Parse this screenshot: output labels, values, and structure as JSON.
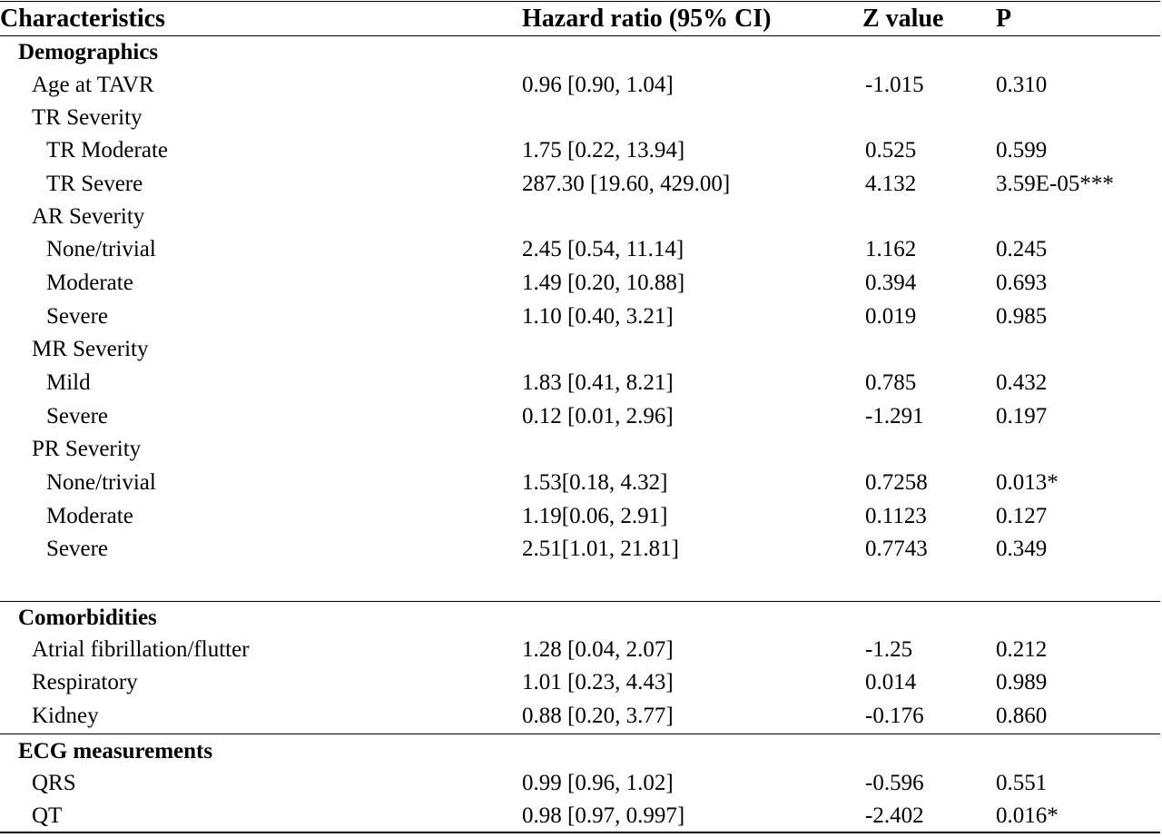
{
  "columns": {
    "characteristics": "Characteristics",
    "hazard_ratio": "Hazard ratio (95% CI)",
    "z_value": "Z value",
    "p": "P"
  },
  "sections": [
    {
      "title": "Demographics",
      "rows": [
        {
          "label": "Age at TAVR",
          "hr": "0.96 [0.90, 1.04]",
          "z": "-1.015",
          "p": "0.310"
        },
        {
          "label": "TR Severity",
          "hr": "",
          "z": "",
          "p": ""
        },
        {
          "label": "TR Moderate",
          "hr": "1.75 [0.22, 13.94]",
          "z": "0.525",
          "p": "0.599"
        },
        {
          "label": "TR Severe",
          "hr": "287.30 [19.60, 429.00]",
          "z": "4.132",
          "p": "3.59E-05***"
        },
        {
          "label": "AR Severity",
          "hr": "",
          "z": "",
          "p": ""
        },
        {
          "label": "None/trivial",
          "hr": "2.45 [0.54, 11.14]",
          "z": "1.162",
          "p": "0.245"
        },
        {
          "label": "Moderate",
          "hr": "1.49 [0.20, 10.88]",
          "z": "0.394",
          "p": "0.693"
        },
        {
          "label": "Severe",
          "hr": "1.10 [0.40, 3.21]",
          "z": "0.019",
          "p": "0.985"
        },
        {
          "label": "MR Severity",
          "hr": "",
          "z": "",
          "p": ""
        },
        {
          "label": "Mild",
          "hr": "1.83 [0.41, 8.21]",
          "z": "0.785",
          "p": "0.432"
        },
        {
          "label": "Severe",
          "hr": "0.12 [0.01, 2.96]",
          "z": "-1.291",
          "p": "0.197"
        },
        {
          "label": "PR Severity",
          "hr": "",
          "z": "",
          "p": ""
        },
        {
          "label": "None/trivial",
          "hr": "1.53[0.18, 4.32]",
          "z": "0.7258",
          "p": "0.013*"
        },
        {
          "label": "Moderate",
          "hr": "1.19[0.06, 2.91]",
          "z": "0.1123",
          "p": "0.127"
        },
        {
          "label": "Severe",
          "hr": "2.51[1.01, 21.81]",
          "z": "0.7743",
          "p": "0.349"
        }
      ]
    },
    {
      "title": "Comorbidities",
      "rows": [
        {
          "label": "Atrial fibrillation/flutter",
          "hr": "1.28 [0.04, 2.07]",
          "z": "-1.25",
          "p": "0.212"
        },
        {
          "label": "Respiratory",
          "hr": "1.01 [0.23, 4.43]",
          "z": "0.014",
          "p": "0.989"
        },
        {
          "label": "Kidney",
          "hr": "0.88 [0.20, 3.77]",
          "z": "-0.176",
          "p": "0.860"
        }
      ]
    },
    {
      "title": "ECG measurements",
      "rows": [
        {
          "label": "QRS",
          "hr": "0.99 [0.96, 1.02]",
          "z": "-0.596",
          "p": "0.551"
        },
        {
          "label": "QT",
          "hr": "0.98 [0.97, 0.997]",
          "z": "-2.402",
          "p": "0.016*"
        }
      ]
    }
  ]
}
